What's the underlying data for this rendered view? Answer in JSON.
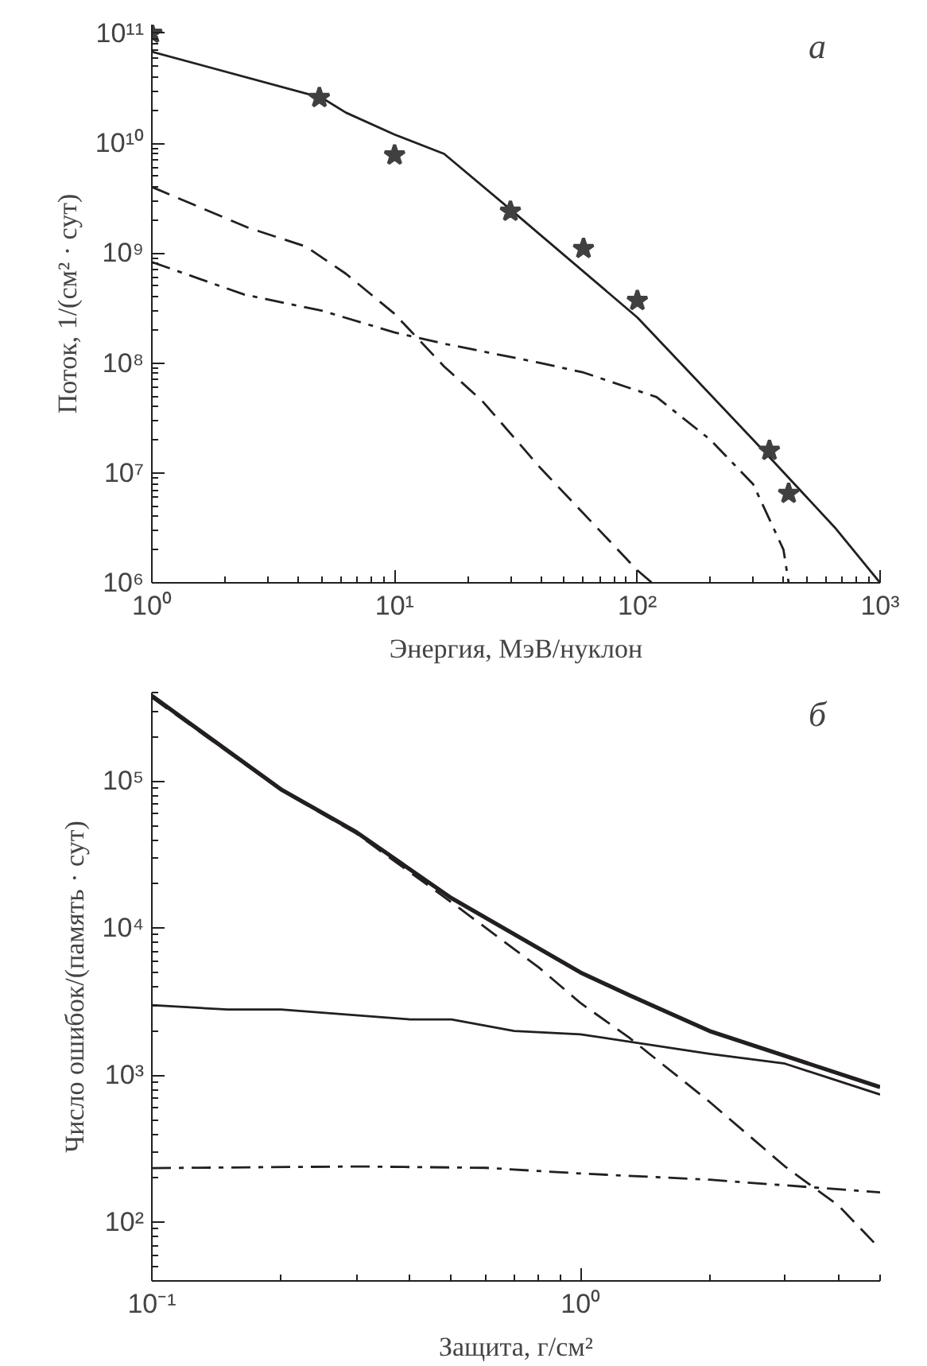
{
  "chart_data": [
    {
      "type": "line",
      "xlabel": "Энергия, МэВ/нуклон",
      "ylabel": "Поток, 1/(см² · сут)",
      "log": "xy",
      "grid": false,
      "annotations": [
        "а"
      ],
      "xlim": [
        1,
        1000
      ],
      "ylim": [
        1000000,
        120000000000
      ],
      "xticks": [
        {
          "value": 1,
          "label": "10⁰"
        },
        {
          "value": 10,
          "label": "10¹"
        },
        {
          "value": 100,
          "label": "10²"
        },
        {
          "value": 1000,
          "label": "10³"
        }
      ],
      "yticks": [
        {
          "value": 1000000,
          "label": "10⁶"
        },
        {
          "value": 10000000,
          "label": "10⁷"
        },
        {
          "value": 100000000,
          "label": "10⁸"
        },
        {
          "value": 1000000000,
          "label": "10⁹"
        },
        {
          "value": 10000000000,
          "label": "10¹⁰"
        },
        {
          "value": 100000000000,
          "label": "10¹¹"
        }
      ],
      "series": [
        {
          "color": "#231f20",
          "line_style": "solid",
          "marker": "none",
          "x": [
            1,
            5,
            6.3,
            10,
            16,
            30,
            100,
            160,
            330,
            650,
            1000
          ],
          "values": [
            68000000000,
            26000000000,
            19000000000,
            12000000000,
            8000000000,
            2500000000,
            260000000,
            87000000,
            16000000,
            3200000,
            1000000
          ]
        },
        {
          "color": "#231f20",
          "line_style": "dashed",
          "marker": "none",
          "x": [
            1,
            2.5,
            4.3,
            6.3,
            10,
            16,
            23,
            40,
            100,
            115
          ],
          "values": [
            4000000000,
            1700000000,
            1150000000,
            650000000,
            280000000,
            93000000,
            45000000,
            11000000,
            1300000,
            1000000
          ]
        },
        {
          "color": "#231f20",
          "line_style": "dashdot",
          "marker": "none",
          "x": [
            1,
            2.4,
            5,
            10,
            16,
            40,
            60,
            120,
            200,
            300,
            400,
            420
          ],
          "values": [
            830000000,
            420000000,
            300000000,
            190000000,
            150000000,
            100000000,
            82000000,
            49000000,
            20000000,
            7900000,
            2000000,
            1000000
          ]
        },
        {
          "type": "scatter",
          "color": "#404040",
          "marker": "star",
          "x": [
            1,
            4.9,
            10,
            30,
            60,
            100,
            350,
            420
          ],
          "values": [
            100000000000,
            26000000000,
            7800000000,
            2400000000,
            1100000000,
            370000000,
            16000000,
            6500000
          ]
        }
      ]
    },
    {
      "type": "line",
      "xlabel": "Защита, г/см²",
      "ylabel": "Число ошибок/(память · сут)",
      "log": "xy",
      "grid": false,
      "annotations": [
        "б"
      ],
      "xlim": [
        0.1,
        5
      ],
      "ylim": [
        40,
        400000
      ],
      "xticks": [
        {
          "value": 0.1,
          "label": "10⁻¹"
        },
        {
          "value": 1,
          "label": "10⁰"
        }
      ],
      "yticks": [
        {
          "value": 100,
          "label": "10²"
        },
        {
          "value": 1000,
          "label": "10³"
        },
        {
          "value": 10000,
          "label": "10⁴"
        },
        {
          "value": 100000,
          "label": "10⁵"
        }
      ],
      "series": [
        {
          "color": "#231f20",
          "line_style": "solid",
          "marker": "none",
          "x": [
            0.1,
            0.2,
            0.3,
            0.5,
            1,
            1.3,
            2,
            5
          ],
          "values": [
            380000,
            88000,
            45000,
            16000,
            5000,
            3500,
            2000,
            830
          ]
        },
        {
          "color": "#231f20",
          "line_style": "solid",
          "marker": "none",
          "x": [
            0.1,
            0.15,
            0.2,
            0.4,
            0.5,
            0.7,
            1,
            2,
            3,
            5
          ],
          "values": [
            3000,
            2800,
            2800,
            2400,
            2400,
            2000,
            1900,
            1400,
            1200,
            740
          ]
        },
        {
          "color": "#231f20",
          "line_style": "dashed",
          "marker": "none",
          "x": [
            0.1,
            0.2,
            0.3,
            0.5,
            0.8,
            1,
            1.3,
            2,
            3,
            4,
            5
          ],
          "values": [
            370000,
            87000,
            44000,
            15000,
            5400,
            3100,
            1800,
            660,
            240,
            130,
            66
          ]
        },
        {
          "color": "#231f20",
          "line_style": "dashdot",
          "marker": "none",
          "x": [
            0.1,
            0.3,
            0.6,
            1,
            2,
            5
          ],
          "values": [
            234,
            240,
            235,
            215,
            195,
            160
          ]
        }
      ]
    }
  ]
}
